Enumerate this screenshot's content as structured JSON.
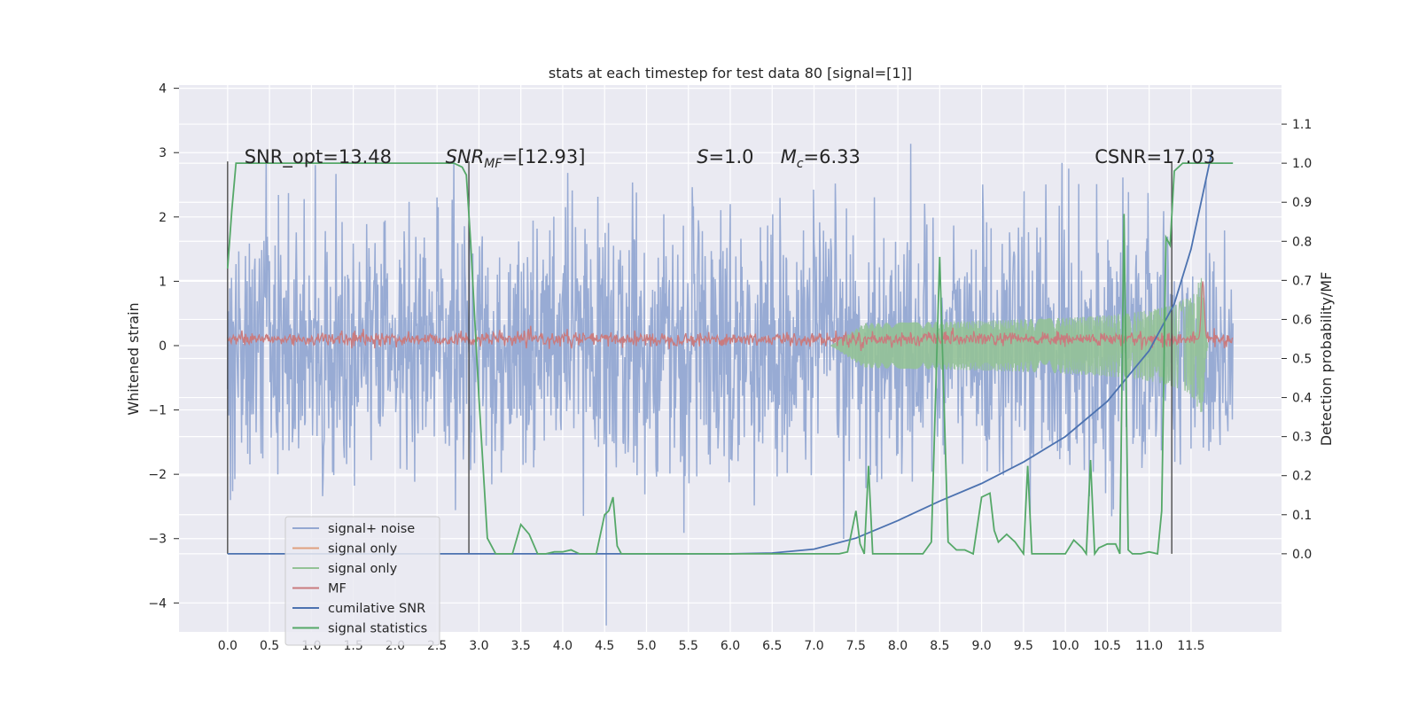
{
  "chart_data": {
    "type": "line",
    "title": "stats at each timestep for test data 80 [signal=[1]]",
    "xlabel": "",
    "ylabel": "Whitened strain",
    "ylabel_right": "Detection probability/MF",
    "xlim": [
      -0.58,
      12.58
    ],
    "ylim": [
      -4.45,
      4.05
    ],
    "ylim_right": [
      -0.2,
      1.2
    ],
    "x_ticks": [
      "0.0",
      "0.5",
      "1.0",
      "1.5",
      "2.0",
      "2.5",
      "3.0",
      "3.5",
      "4.0",
      "4.5",
      "5.0",
      "5.5",
      "6.0",
      "6.5",
      "7.0",
      "7.5",
      "8.0",
      "8.5",
      "9.0",
      "9.5",
      "10.0",
      "10.5",
      "11.0",
      "11.5"
    ],
    "y_ticks": [
      "4",
      "3",
      "2",
      "1",
      "0",
      "−1",
      "−2",
      "−3",
      "−4"
    ],
    "y_ticks_right": [
      "1.1",
      "1.0",
      "0.9",
      "0.8",
      "0.7",
      "0.6",
      "0.5",
      "0.4",
      "0.3",
      "0.2",
      "0.1",
      "0.0"
    ],
    "grid": true,
    "legend_position": "lower-left",
    "annotations": [
      {
        "text": "SNR_opt=13.48",
        "x": 0.2,
        "y": 2.95
      },
      {
        "text": "SNR",
        "sub": "MF",
        "rest": "=[12.93]",
        "italic": true,
        "x": 2.6,
        "y": 2.95
      },
      {
        "text": "S",
        "rest": "=1.0",
        "italic": true,
        "x": 5.6,
        "y": 2.95
      },
      {
        "text": "M",
        "sub": "c",
        "rest": "=6.33",
        "italic": true,
        "x": 6.6,
        "y": 2.95
      },
      {
        "text": "CSNR=17.03",
        "x": 10.35,
        "y": 2.95
      }
    ],
    "vlines": [
      0.0,
      2.88,
      11.27
    ],
    "series": [
      {
        "name": "signal+ noise",
        "color": "#94a8d2",
        "kind": "noise",
        "x_range": [
          0,
          12.0
        ],
        "amplitude_sd": 1.0
      },
      {
        "name": "signal only",
        "color": "#e0a07e",
        "kind": "chirp_hidden"
      },
      {
        "name": "signal only",
        "color": "#94c297",
        "kind": "chirp",
        "x_range": [
          7.2,
          11.7
        ],
        "peak_amplitude": 1.05,
        "peak_x": 11.65
      },
      {
        "name": "MF",
        "color": "#c97b7e",
        "kind": "mf_noise",
        "x_range": [
          0,
          12.0
        ],
        "center": 0.1,
        "amplitude": 0.12
      },
      {
        "name": "cumilative SNR",
        "color": "#4c72b0",
        "axis": "right",
        "x": [
          0,
          6.0,
          6.5,
          7.0,
          7.5,
          8.0,
          8.5,
          9.0,
          9.5,
          10.0,
          10.5,
          11.0,
          11.3,
          11.5,
          11.7,
          11.75
        ],
        "y": [
          0.0,
          0.0,
          0.002,
          0.012,
          0.04,
          0.085,
          0.135,
          0.18,
          0.235,
          0.3,
          0.39,
          0.52,
          0.64,
          0.78,
          0.98,
          1.03
        ]
      },
      {
        "name": "signal statistics",
        "color": "#55a868",
        "axis": "right",
        "x": [
          0.0,
          0.05,
          0.1,
          0.2,
          0.3,
          2.7,
          2.8,
          2.85,
          2.9,
          3.0,
          3.1,
          3.2,
          3.3,
          3.4,
          3.5,
          3.6,
          3.7,
          3.8,
          3.9,
          4.0,
          4.1,
          4.2,
          4.3,
          4.4,
          4.5,
          4.55,
          4.6,
          4.65,
          4.7,
          5.0,
          6.0,
          7.0,
          7.3,
          7.4,
          7.5,
          7.55,
          7.6,
          7.65,
          7.7,
          7.8,
          8.0,
          8.3,
          8.4,
          8.45,
          8.5,
          8.55,
          8.6,
          8.7,
          8.8,
          8.9,
          9.0,
          9.1,
          9.15,
          9.2,
          9.3,
          9.4,
          9.5,
          9.55,
          9.6,
          9.7,
          9.8,
          9.9,
          10.0,
          10.1,
          10.2,
          10.25,
          10.3,
          10.35,
          10.4,
          10.5,
          10.6,
          10.65,
          10.7,
          10.75,
          10.8,
          10.9,
          11.0,
          11.1,
          11.15,
          11.2,
          11.25,
          11.3,
          11.4,
          11.5,
          11.6,
          12.0
        ],
        "y": [
          0.73,
          0.88,
          1.0,
          1.0,
          1.0,
          1.0,
          0.99,
          0.97,
          0.8,
          0.4,
          0.04,
          0.0,
          0.0,
          0.0,
          0.075,
          0.05,
          0.0,
          0.0,
          0.005,
          0.005,
          0.01,
          0.0,
          0.0,
          0.0,
          0.1,
          0.11,
          0.145,
          0.02,
          0.0,
          0.0,
          0.0,
          0.0,
          0.0,
          0.005,
          0.11,
          0.025,
          0.0,
          0.225,
          0.0,
          0.0,
          0.0,
          0.0,
          0.03,
          0.4,
          0.76,
          0.4,
          0.03,
          0.01,
          0.01,
          0.0,
          0.145,
          0.155,
          0.06,
          0.03,
          0.05,
          0.03,
          0.0,
          0.225,
          0.0,
          0.0,
          0.0,
          0.0,
          0.0,
          0.035,
          0.015,
          0.0,
          0.24,
          0.0,
          0.015,
          0.025,
          0.025,
          0.0,
          0.87,
          0.01,
          0.0,
          0.0,
          0.005,
          0.0,
          0.11,
          0.81,
          0.79,
          0.98,
          1.0,
          1.0,
          1.0,
          1.0
        ]
      }
    ]
  }
}
